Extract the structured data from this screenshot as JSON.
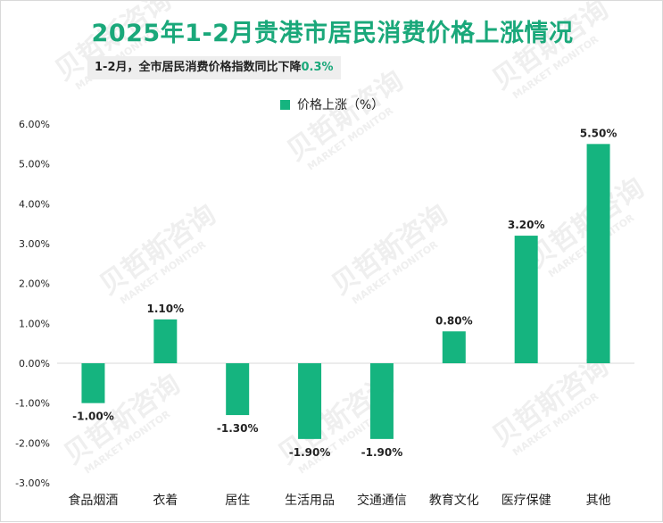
{
  "page": {
    "title": "2025年1-2月贵港市居民消费价格上涨情况",
    "subtitle_text": "1-2月，全市居民消费价格指数同比下降",
    "subtitle_highlight": "0.3%",
    "watermark_cn": "贝哲斯咨询",
    "watermark_en": "MARKET MONITOR"
  },
  "colors": {
    "bar": "#15b47f",
    "title": "#1aa87a",
    "axis": "#d9d9d9"
  },
  "chart_data": {
    "type": "bar",
    "legend": "价格上涨（%）",
    "legend_position": "top-center",
    "categories": [
      "食品烟酒",
      "衣着",
      "居住",
      "生活用品",
      "交通通信",
      "教育文化",
      "医疗保健",
      "其他"
    ],
    "series": [
      {
        "name": "价格上涨（%）",
        "values": [
          -1.0,
          1.1,
          -1.3,
          -1.9,
          -1.9,
          0.8,
          3.2,
          5.5
        ],
        "labels": [
          "-1.00%",
          "1.10%",
          "-1.30%",
          "-1.90%",
          "-1.90%",
          "0.80%",
          "3.20%",
          "5.50%"
        ]
      }
    ],
    "ylim": [
      -3.0,
      6.0
    ],
    "yticks": [
      6.0,
      5.0,
      4.0,
      3.0,
      2.0,
      1.0,
      0.0,
      -1.0,
      -2.0,
      -3.0
    ],
    "ytick_labels": [
      "6.00%",
      "5.00%",
      "4.00%",
      "3.00%",
      "2.00%",
      "1.00%",
      "0.00%",
      "-1.00%",
      "-2.00%",
      "-3.00%"
    ],
    "grid": false
  }
}
